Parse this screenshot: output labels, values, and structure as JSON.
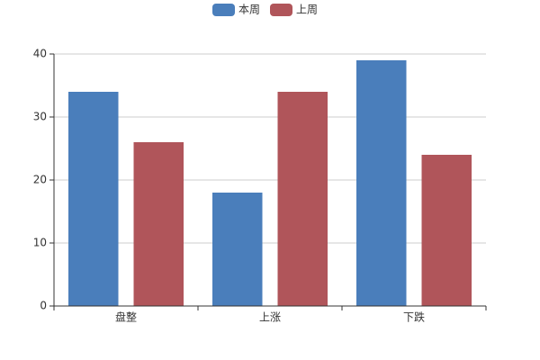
{
  "chart_data": {
    "type": "bar",
    "categories": [
      "盘整",
      "上涨",
      "下跌"
    ],
    "series": [
      {
        "name": "本周",
        "color": "#4a7ebb",
        "values": [
          34,
          18,
          39
        ]
      },
      {
        "name": "上周",
        "color": "#b0555a",
        "values": [
          26,
          34,
          24
        ]
      }
    ],
    "ylim": [
      0,
      40
    ],
    "yticks": [
      0,
      10,
      20,
      30,
      40
    ],
    "grid": true,
    "legend": "top"
  }
}
